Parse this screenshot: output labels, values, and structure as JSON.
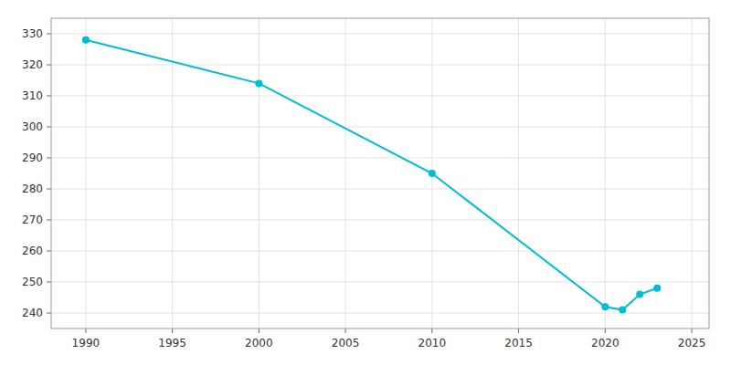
{
  "chart_data": {
    "type": "line",
    "x": [
      1990,
      2000,
      2010,
      2020,
      2021,
      2022,
      2023
    ],
    "values": [
      328,
      314,
      285,
      242,
      241,
      246,
      248
    ],
    "color": "#00bcd4",
    "marker": "circle",
    "xlim": [
      1988,
      2026
    ],
    "xticks": [
      1990,
      1995,
      2000,
      2005,
      2010,
      2015,
      2020,
      2025
    ],
    "ylim": [
      235,
      335
    ],
    "yticks": [
      240,
      250,
      260,
      270,
      280,
      290,
      300,
      310,
      320,
      330
    ],
    "grid": true
  }
}
